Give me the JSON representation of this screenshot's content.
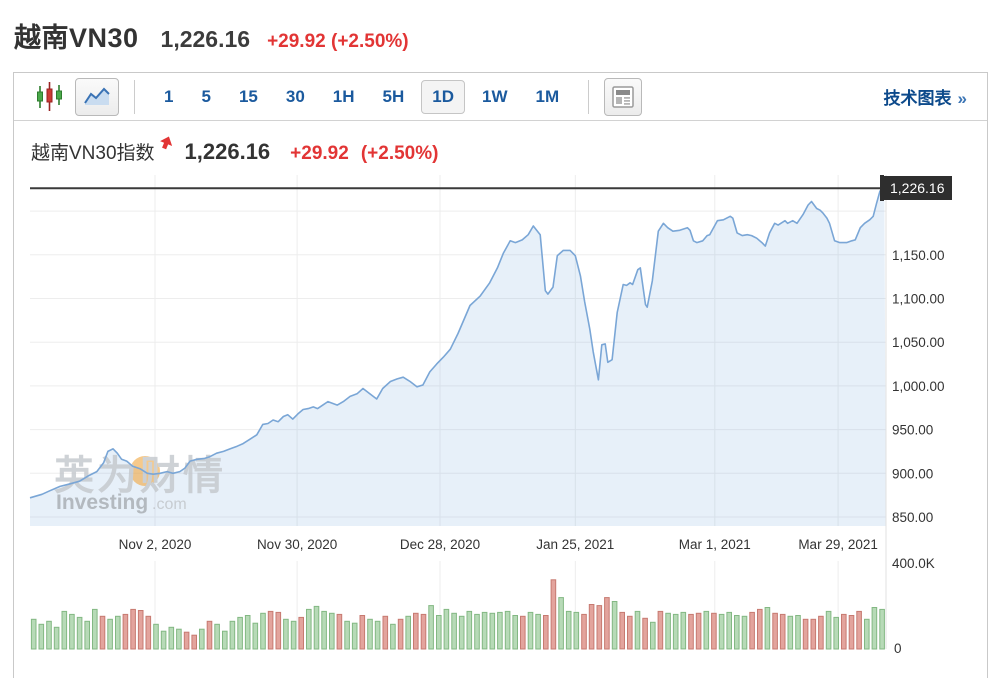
{
  "header": {
    "title": "越南VN30",
    "price": "1,226.16",
    "change_full": "+29.92 (+2.50%)"
  },
  "toolbar": {
    "chart_types": [
      {
        "name": "candlestick",
        "selected": false
      },
      {
        "name": "area",
        "selected": true
      }
    ],
    "intervals": [
      {
        "label": "1",
        "selected": false
      },
      {
        "label": "5",
        "selected": false
      },
      {
        "label": "15",
        "selected": false
      },
      {
        "label": "30",
        "selected": false
      },
      {
        "label": "1H",
        "selected": false
      },
      {
        "label": "5H",
        "selected": false
      },
      {
        "label": "1D",
        "selected": true
      },
      {
        "label": "1W",
        "selected": false
      },
      {
        "label": "1M",
        "selected": false
      }
    ],
    "news_button": "news-panel",
    "technical_chart_label": "技术图表",
    "link_arrow": "»"
  },
  "chart_header": {
    "title": "越南VN30指数",
    "price": "1,226.16",
    "change": "+29.92",
    "change_pct": "(+2.50%)"
  },
  "watermark": {
    "cn": "英为财情",
    "en": "Investing",
    "domain": ".com"
  },
  "colors": {
    "red": "#e23535",
    "toolbar_blue": "#1b5a9e",
    "link_blue": "#0d4a8b",
    "link_arrow_blue": "#3b75b5",
    "line_blue": "#7aa6d6",
    "area_fill": "rgba(106,159,216,0.16)",
    "grid": "#ededed",
    "axis_text": "#333333",
    "price_line": "#3a3a3a",
    "price_tag_bg": "#2e2e2e",
    "price_tag_text": "#ffffff",
    "vol_up_fill": "#b7dab7",
    "vol_up_border": "#83b883",
    "vol_down_fill": "#e3a49d",
    "vol_down_border": "#c77a71",
    "watermark_gray": "#c3c7cc",
    "watermark_orange": "#f0a63c"
  },
  "chart_data": {
    "type": "area",
    "title": "越南VN30指数",
    "last_price": 1226.16,
    "change": 29.92,
    "change_pct": 2.5,
    "current_price_label": "1,226.16",
    "grid": true,
    "legend_position": "none",
    "y_axis": {
      "range": [
        843,
        1238
      ],
      "gridline_values": [
        850,
        900,
        950,
        1000,
        1050,
        1100,
        1150,
        1200
      ],
      "tick_values": [
        1150,
        1100,
        1050,
        1000,
        950,
        900,
        850
      ],
      "tick_labels": [
        "1,150.00",
        "1,100.00",
        "1,050.00",
        "1,000.00",
        "950.00",
        "900.00",
        "850.00"
      ]
    },
    "x_axis": {
      "tick_labels": [
        "Nov 2, 2020",
        "Nov 30, 2020",
        "Dec 28, 2020",
        "Jan 25, 2021",
        "Mar 1, 2021",
        "Mar 29, 2021"
      ],
      "tick_positions": [
        0.146,
        0.312,
        0.479,
        0.637,
        0.8,
        0.944
      ]
    },
    "series": [
      {
        "name": "VN30",
        "x_frac": [
          0.0,
          0.014,
          0.023,
          0.035,
          0.047,
          0.058,
          0.068,
          0.078,
          0.086,
          0.091,
          0.097,
          0.102,
          0.107,
          0.113,
          0.12,
          0.129,
          0.137,
          0.144,
          0.152,
          0.16,
          0.167,
          0.175,
          0.181,
          0.187,
          0.195,
          0.204,
          0.21,
          0.218,
          0.226,
          0.234,
          0.242,
          0.249,
          0.257,
          0.265,
          0.272,
          0.278,
          0.284,
          0.29,
          0.296,
          0.301,
          0.307,
          0.313,
          0.319,
          0.325,
          0.331,
          0.336,
          0.342,
          0.348,
          0.359,
          0.366,
          0.374,
          0.382,
          0.389,
          0.397,
          0.405,
          0.412,
          0.421,
          0.429,
          0.436,
          0.444,
          0.452,
          0.459,
          0.467,
          0.475,
          0.483,
          0.491,
          0.5,
          0.514,
          0.526,
          0.537,
          0.546,
          0.553,
          0.561,
          0.567,
          0.575,
          0.582,
          0.588,
          0.596,
          0.602,
          0.605,
          0.611,
          0.616,
          0.623,
          0.631,
          0.637,
          0.643,
          0.648,
          0.654,
          0.658,
          0.664,
          0.668,
          0.672,
          0.675,
          0.68,
          0.686,
          0.693,
          0.697,
          0.701,
          0.704,
          0.71,
          0.713,
          0.719,
          0.721,
          0.727,
          0.734,
          0.74,
          0.745,
          0.751,
          0.759,
          0.768,
          0.771,
          0.775,
          0.779,
          0.786,
          0.791,
          0.794,
          0.803,
          0.81,
          0.818,
          0.821,
          0.826,
          0.832,
          0.838,
          0.843,
          0.849,
          0.855,
          0.859,
          0.864,
          0.87,
          0.874,
          0.882,
          0.885,
          0.891,
          0.896,
          0.903,
          0.909,
          0.913,
          0.919,
          0.923,
          0.926,
          0.931,
          0.934,
          0.94,
          0.946,
          0.954,
          0.96,
          0.964,
          0.97,
          0.975,
          0.981,
          0.985,
          0.989,
          0.993,
          0.998
        ],
        "price": [
          872,
          876,
          880,
          885,
          888,
          891,
          897,
          902,
          912,
          925,
          928,
          923,
          916,
          914,
          908,
          905,
          900,
          899,
          900,
          902,
          900,
          902,
          906,
          914,
          916,
          917,
          919,
          923,
          925,
          928,
          931,
          934,
          939,
          944,
          956,
          957,
          961,
          959,
          965,
          967,
          962,
          968,
          973,
          974,
          976,
          974,
          978,
          982,
          978,
          982,
          988,
          991,
          997,
          991,
          985,
          997,
          1005,
          1008,
          1010,
          1005,
          999,
          1001,
          1016,
          1025,
          1033,
          1042,
          1060,
          1092,
          1103,
          1118,
          1135,
          1152,
          1166,
          1164,
          1167,
          1173,
          1183,
          1173,
          1109,
          1105,
          1113,
          1149,
          1155,
          1155,
          1149,
          1126,
          1096,
          1065,
          1039,
          1007,
          1047,
          1048,
          1027,
          1030,
          1084,
          1116,
          1115,
          1118,
          1116,
          1133,
          1135,
          1093,
          1090,
          1120,
          1177,
          1186,
          1181,
          1177,
          1178,
          1181,
          1178,
          1166,
          1164,
          1166,
          1172,
          1173,
          1189,
          1190,
          1194,
          1192,
          1175,
          1172,
          1173,
          1172,
          1169,
          1164,
          1160,
          1175,
          1186,
          1184,
          1189,
          1186,
          1189,
          1186,
          1196,
          1207,
          1211,
          1203,
          1201,
          1198,
          1192,
          1186,
          1166,
          1164,
          1164,
          1166,
          1167,
          1181,
          1186,
          1190,
          1194,
          1209,
          1223,
          1226.16
        ]
      }
    ],
    "volume": {
      "unit": "K",
      "max_k": 400,
      "tick_labels": [
        "400.0K",
        "0"
      ],
      "bars_k": [
        138,
        115,
        129,
        101,
        175,
        161,
        147,
        129,
        184,
        152,
        138,
        152,
        161,
        184,
        179,
        152,
        115,
        83,
        101,
        92,
        78,
        64,
        92,
        129,
        115,
        83,
        129,
        147,
        156,
        120,
        166,
        175,
        170,
        138,
        129,
        147,
        184,
        198,
        175,
        166,
        161,
        129,
        120,
        156,
        138,
        129,
        152,
        115,
        138,
        152,
        166,
        161,
        202,
        156,
        184,
        166,
        152,
        175,
        161,
        170,
        166,
        170,
        175,
        156,
        152,
        170,
        161,
        156,
        322,
        239,
        175,
        170,
        161,
        207,
        202,
        239,
        221,
        170,
        152,
        175,
        143,
        124,
        175,
        166,
        161,
        170,
        161,
        166,
        175,
        166,
        161,
        170,
        156,
        152,
        170,
        184,
        193,
        166,
        161,
        152,
        156,
        138,
        138,
        152,
        175,
        147,
        161,
        156,
        175,
        138,
        193,
        184
      ],
      "bar_dir": [
        "u",
        "u",
        "u",
        "u",
        "u",
        "u",
        "u",
        "u",
        "u",
        "d",
        "u",
        "u",
        "d",
        "d",
        "d",
        "d",
        "u",
        "u",
        "u",
        "u",
        "d",
        "d",
        "u",
        "d",
        "u",
        "u",
        "u",
        "u",
        "u",
        "u",
        "u",
        "d",
        "d",
        "u",
        "u",
        "d",
        "u",
        "u",
        "u",
        "u",
        "d",
        "u",
        "u",
        "d",
        "u",
        "u",
        "d",
        "u",
        "d",
        "u",
        "d",
        "d",
        "u",
        "u",
        "u",
        "u",
        "u",
        "u",
        "u",
        "u",
        "u",
        "u",
        "u",
        "u",
        "d",
        "u",
        "u",
        "d",
        "d",
        "u",
        "u",
        "u",
        "d",
        "d",
        "d",
        "d",
        "u",
        "d",
        "d",
        "u",
        "d",
        "u",
        "d",
        "u",
        "u",
        "u",
        "d",
        "d",
        "u",
        "d",
        "u",
        "u",
        "u",
        "u",
        "d",
        "d",
        "u",
        "d",
        "d",
        "u",
        "u",
        "d",
        "d",
        "d",
        "u",
        "u",
        "d",
        "d",
        "d",
        "u",
        "u",
        "u"
      ]
    }
  }
}
